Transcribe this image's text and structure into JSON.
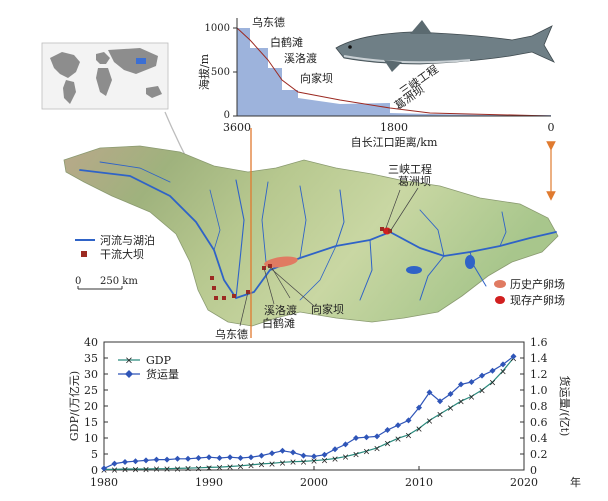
{
  "colors": {
    "river": "#2f63c7",
    "dam": "#9c2a22",
    "historical_spawning": "#e07b62",
    "existing_spawning": "#d11f1f",
    "gdp": "#2a8a7d",
    "freight": "#2f55b8",
    "profile_fill": "#9db3dc",
    "arrow": "#e07a2f"
  },
  "profile_chart": {
    "ylabel": "海拔/m",
    "xlabel": "自长江口距离/km",
    "y_ticks": [
      "0",
      "500",
      "1000"
    ],
    "x_ticks": [
      "3600",
      "1800",
      "0"
    ],
    "dam_labels": [
      "乌东德",
      "白鹤滩",
      "溪洛渡",
      "向家坝",
      "三峡工程",
      "葛洲坝"
    ]
  },
  "map": {
    "legend_river": "河流与湖泊",
    "legend_dam": "干流大坝",
    "scale_zero": "0",
    "scale_label": "250 km",
    "legend_historical": "历史产卵场",
    "legend_existing": "现存产卵场",
    "label_three_gorges": "三峡工程",
    "label_gezhouba": "葛洲坝",
    "label_xiluodu": "溪洛渡",
    "label_xiangjiaba": "向家坝",
    "label_baihetan": "白鹤滩",
    "label_wudongde": "乌东德"
  },
  "chart_data": {
    "type": "line",
    "xlabel": "年",
    "ylabel_left": "GDP/(万亿元)",
    "ylabel_right": "货运量/(亿t)",
    "ylim_left": [
      0,
      40
    ],
    "ylim_right": [
      0,
      1.6
    ],
    "x_ticks": [
      1980,
      1990,
      2000,
      2010,
      2020
    ],
    "y_ticks_left": [
      0,
      5,
      10,
      15,
      20,
      25,
      30,
      35,
      40
    ],
    "y_ticks_right": [
      0,
      0.2,
      0.4,
      0.6,
      0.8,
      1.0,
      1.2,
      1.4,
      1.6
    ],
    "legend_position": "top-left",
    "series": [
      {
        "name": "GDP",
        "axis": "left",
        "x": [
          1980,
          1981,
          1982,
          1983,
          1984,
          1985,
          1986,
          1987,
          1988,
          1989,
          1990,
          1991,
          1992,
          1993,
          1994,
          1995,
          1996,
          1997,
          1998,
          1999,
          2000,
          2001,
          2002,
          2003,
          2004,
          2005,
          2006,
          2007,
          2008,
          2009,
          2010,
          2011,
          2012,
          2013,
          2014,
          2015,
          2016,
          2017,
          2018,
          2019
        ],
        "values": [
          0.2,
          0.2,
          0.3,
          0.3,
          0.3,
          0.4,
          0.4,
          0.5,
          0.6,
          0.7,
          0.8,
          0.9,
          1.1,
          1.3,
          1.6,
          1.9,
          2.1,
          2.4,
          2.6,
          2.7,
          2.9,
          3.2,
          3.6,
          4.2,
          5.0,
          5.9,
          6.9,
          8.4,
          9.9,
          11.0,
          13.0,
          15.5,
          17.5,
          19.5,
          21.5,
          23.0,
          25.0,
          27.5,
          31.0,
          35.0
        ]
      },
      {
        "name": "货运量",
        "axis": "right",
        "x": [
          1980,
          1981,
          1982,
          1983,
          1984,
          1985,
          1986,
          1987,
          1988,
          1989,
          1990,
          1991,
          1992,
          1993,
          1994,
          1995,
          1996,
          1997,
          1998,
          1999,
          2000,
          2001,
          2002,
          2003,
          2004,
          2005,
          2006,
          2007,
          2008,
          2009,
          2010,
          2011,
          2012,
          2013,
          2014,
          2015,
          2016,
          2017,
          2018,
          2019
        ],
        "values": [
          0.02,
          0.08,
          0.1,
          0.11,
          0.12,
          0.13,
          0.13,
          0.14,
          0.14,
          0.15,
          0.16,
          0.15,
          0.16,
          0.15,
          0.16,
          0.18,
          0.21,
          0.24,
          0.22,
          0.18,
          0.17,
          0.19,
          0.26,
          0.32,
          0.4,
          0.41,
          0.42,
          0.5,
          0.56,
          0.62,
          0.78,
          0.97,
          0.86,
          0.95,
          1.07,
          1.1,
          1.18,
          1.24,
          1.32,
          1.42
        ]
      }
    ]
  }
}
